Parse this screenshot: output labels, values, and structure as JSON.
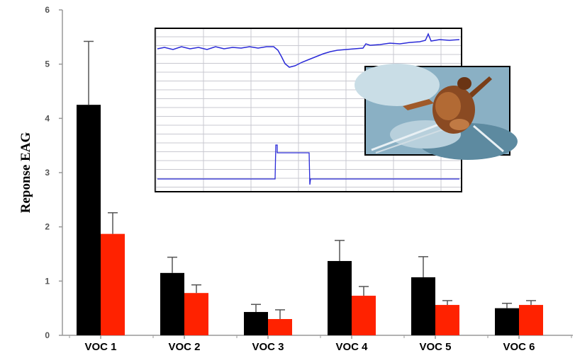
{
  "chart_data": {
    "type": "bar",
    "ylabel": "Reponse EAG",
    "xlabel": "",
    "ylim": [
      0,
      6
    ],
    "yticks": [
      0,
      1,
      2,
      3,
      4,
      5,
      6
    ],
    "categories": [
      "VOC 1",
      "VOC 2",
      "VOC 3",
      "VOC 4",
      "VOC 5",
      "VOC 6"
    ],
    "series": [
      {
        "color": "#000000",
        "values": [
          4.25,
          1.15,
          0.43,
          1.37,
          1.07,
          0.5
        ],
        "errors": [
          1.17,
          0.29,
          0.14,
          0.38,
          0.38,
          0.09
        ]
      },
      {
        "color": "#ff2200",
        "values": [
          1.87,
          0.78,
          0.3,
          0.73,
          0.56,
          0.56
        ],
        "errors": [
          0.39,
          0.15,
          0.17,
          0.17,
          0.08,
          0.08
        ]
      }
    ],
    "grid": false,
    "legend": "none"
  },
  "inset": {
    "trace_color": "#2a2ad8",
    "grid_color": "#c8c8d0",
    "photo": "insect-on-electrode-photo"
  }
}
